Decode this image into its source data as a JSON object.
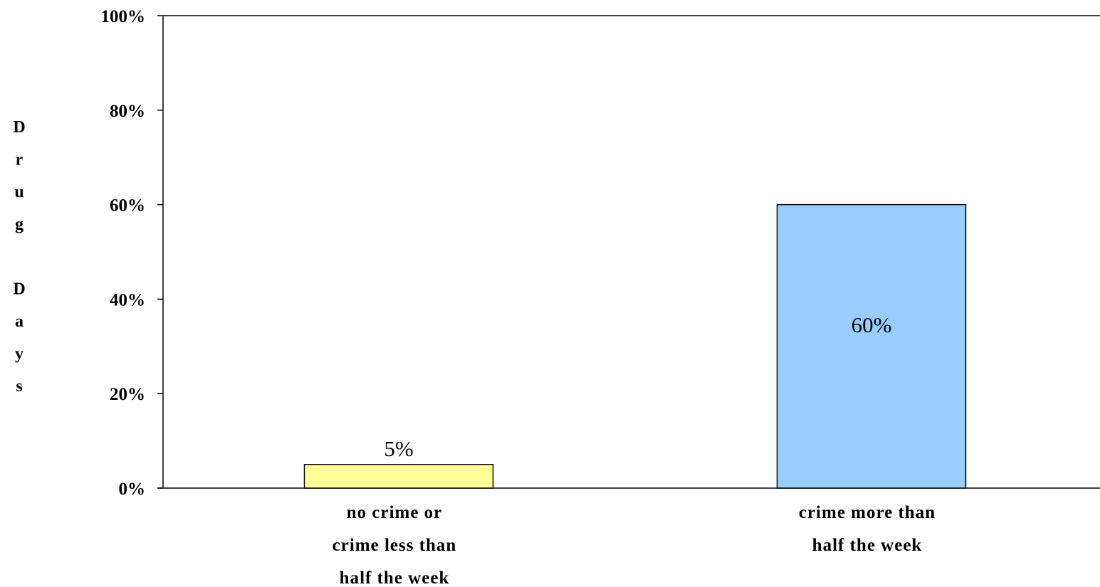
{
  "chart_data": {
    "type": "bar",
    "categories": [
      [
        "no crime or",
        "crime less than",
        "half the week"
      ],
      [
        "crime more than",
        "half the week"
      ]
    ],
    "values": [
      5,
      60
    ],
    "data_labels": [
      "5%",
      "60%"
    ],
    "bar_colors": [
      "#ffff99",
      "#99ccff"
    ],
    "ylabel": "Drug Days",
    "ylim": [
      0,
      100
    ],
    "yticks": [
      "0%",
      "20%",
      "40%",
      "60%",
      "80%",
      "100%"
    ],
    "grid": false,
    "legend": "none"
  }
}
